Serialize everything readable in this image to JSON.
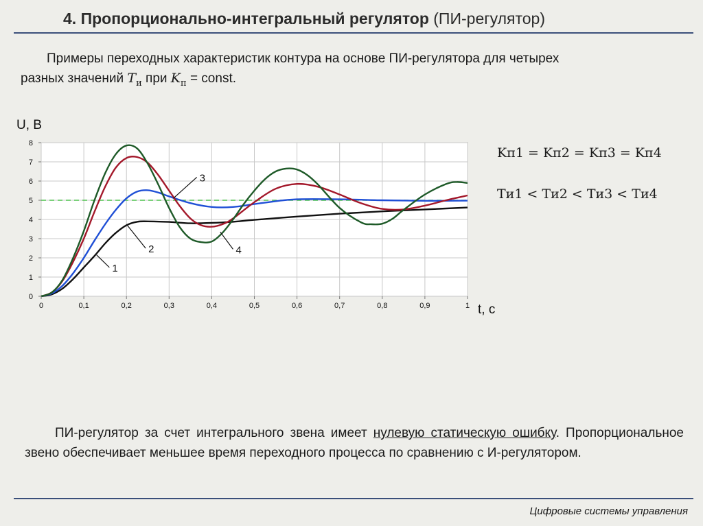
{
  "slide": {
    "title_bold": "4. Пропорционально-интегральный регулятор",
    "title_normal": "(ПИ-регулятор)",
    "footer": "Цифровые системы управления"
  },
  "intro": {
    "part1": "Примеры переходных характеристик контура на основе ПИ-регулятора для четырех",
    "part2": "разных значений",
    "t_symbol": "T",
    "t_sub": "и",
    "part3": "при",
    "k_symbol": "K",
    "k_sub": "п",
    "part4": "= const."
  },
  "formulas": {
    "k_relation": "Kп1 = Kп2 = Kп3 = Kп4",
    "t_relation": "Tи1 < Tи2 < Tи3 < Tи4"
  },
  "conclusion": {
    "part1": "ПИ-регулятор за счет интегрального звена имеет",
    "underlined": "нулевую статическую ошибку",
    "part2": ". Пропорциональное звено обеспечивает меньшее время переходного процесса по сравнению с И-регулятором."
  },
  "chart_data": {
    "type": "line",
    "ylabel": "U, В",
    "xlabel": "t, c",
    "xlim": [
      0,
      1
    ],
    "ylim": [
      0,
      8
    ],
    "x_ticks": [
      "0",
      "0,1",
      "0,2",
      "0,3",
      "0,4",
      "0,5",
      "0,6",
      "0,7",
      "0,8",
      "0,9",
      "1"
    ],
    "y_ticks": [
      "0",
      "1",
      "2",
      "3",
      "4",
      "5",
      "6",
      "7",
      "8"
    ],
    "grid": true,
    "setpoint": 5,
    "series": [
      {
        "name": "1",
        "color": "#111111",
        "x": [
          0,
          0.025,
          0.05,
          0.075,
          0.1,
          0.125,
          0.15,
          0.175,
          0.2,
          0.225,
          0.25,
          0.3,
          0.35,
          0.4,
          0.45,
          0.5,
          0.6,
          0.7,
          0.8,
          0.9,
          1.0
        ],
        "y": [
          0,
          0.1,
          0.4,
          0.9,
          1.5,
          2.1,
          2.75,
          3.3,
          3.7,
          3.88,
          3.9,
          3.87,
          3.8,
          3.82,
          3.88,
          3.98,
          4.15,
          4.3,
          4.42,
          4.52,
          4.62
        ]
      },
      {
        "name": "2",
        "color": "#1f4fd6",
        "x": [
          0,
          0.025,
          0.05,
          0.075,
          0.1,
          0.125,
          0.15,
          0.175,
          0.2,
          0.225,
          0.25,
          0.275,
          0.3,
          0.35,
          0.4,
          0.45,
          0.5,
          0.55,
          0.6,
          0.7,
          0.8,
          0.9,
          1.0
        ],
        "y": [
          0,
          0.15,
          0.55,
          1.2,
          2.0,
          2.9,
          3.75,
          4.5,
          5.1,
          5.45,
          5.52,
          5.4,
          5.2,
          4.85,
          4.65,
          4.65,
          4.8,
          4.95,
          5.05,
          5.05,
          5.0,
          4.97,
          4.98
        ]
      },
      {
        "name": "3",
        "color": "#a3182a",
        "x": [
          0,
          0.025,
          0.05,
          0.075,
          0.1,
          0.125,
          0.15,
          0.175,
          0.2,
          0.225,
          0.25,
          0.275,
          0.3,
          0.325,
          0.35,
          0.375,
          0.4,
          0.425,
          0.45,
          0.5,
          0.55,
          0.6,
          0.65,
          0.7,
          0.75,
          0.8,
          0.85,
          0.9,
          0.95,
          1.0
        ],
        "y": [
          0,
          0.2,
          0.8,
          1.8,
          3.0,
          4.4,
          5.7,
          6.7,
          7.2,
          7.25,
          6.95,
          6.3,
          5.5,
          4.7,
          4.05,
          3.7,
          3.62,
          3.75,
          4.05,
          4.9,
          5.6,
          5.85,
          5.7,
          5.3,
          4.85,
          4.55,
          4.52,
          4.72,
          5.0,
          5.25
        ]
      },
      {
        "name": "4",
        "color": "#1e5a28",
        "x": [
          0,
          0.025,
          0.05,
          0.075,
          0.1,
          0.125,
          0.15,
          0.175,
          0.2,
          0.225,
          0.25,
          0.275,
          0.3,
          0.325,
          0.35,
          0.375,
          0.4,
          0.425,
          0.45,
          0.475,
          0.5,
          0.525,
          0.55,
          0.575,
          0.6,
          0.625,
          0.65,
          0.7,
          0.75,
          0.775,
          0.8,
          0.825,
          0.85,
          0.9,
          0.95,
          0.975,
          1.0
        ],
        "y": [
          0,
          0.2,
          0.85,
          2.0,
          3.4,
          5.0,
          6.4,
          7.4,
          7.85,
          7.7,
          6.9,
          5.8,
          4.6,
          3.6,
          3.0,
          2.82,
          2.85,
          3.3,
          4.0,
          4.8,
          5.5,
          6.1,
          6.5,
          6.65,
          6.6,
          6.3,
          5.8,
          4.6,
          3.85,
          3.75,
          3.78,
          4.05,
          4.5,
          5.3,
          5.85,
          5.95,
          5.9
        ]
      }
    ]
  }
}
